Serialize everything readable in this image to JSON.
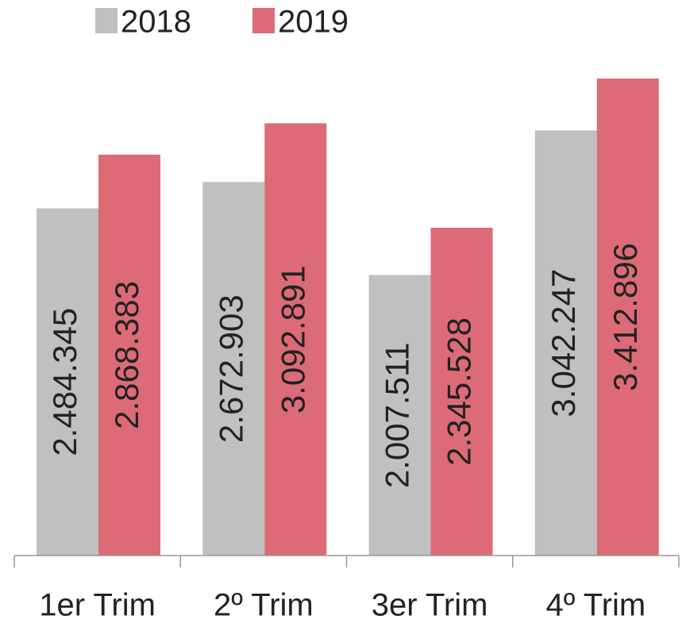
{
  "chart_data": {
    "type": "bar",
    "categories": [
      "1er Trim",
      "2º Trim",
      "3er Trim",
      "4º Trim"
    ],
    "series": [
      {
        "name": "2018",
        "color": "#c0c0c0",
        "values": [
          2484345,
          2672903,
          2007511,
          3042247
        ],
        "value_labels": [
          "2.484.345",
          "2.672.903",
          "2.007.511",
          "3.042.247"
        ]
      },
      {
        "name": "2019",
        "color": "#dc6b77",
        "values": [
          2868383,
          3092891,
          2345528,
          3412896
        ],
        "value_labels": [
          "2.868.383",
          "3.092.891",
          "2.345.528",
          "3.412.896"
        ]
      }
    ]
  }
}
